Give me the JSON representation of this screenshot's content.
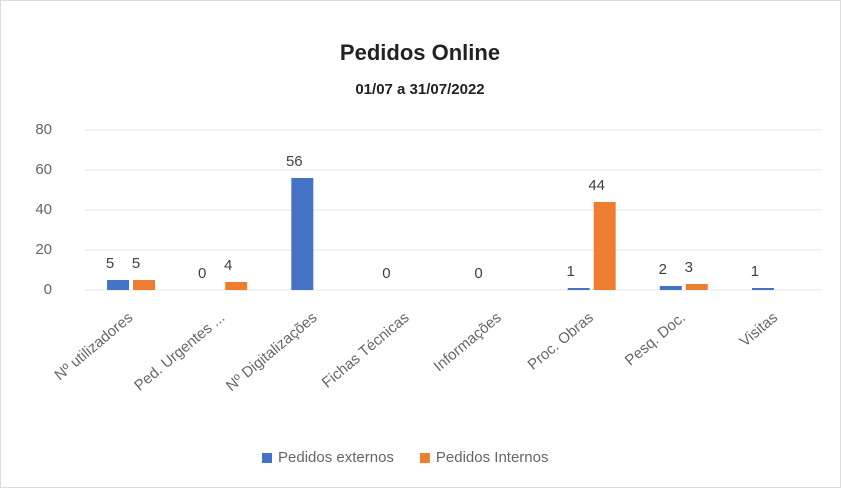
{
  "chart_data": {
    "type": "bar",
    "title": "Pedidos Online",
    "subtitle": "01/07 a 31/07/2022",
    "categories": [
      "Nº utilizadores",
      "Ped. Urgentes ...",
      "Nº Digitalizações",
      "Fichas Técnicas",
      "Informações",
      "Proc. Obras",
      "Pesq. Doc.",
      "Visitas"
    ],
    "series": [
      {
        "name": "Pedidos externos",
        "color": "#4472c4",
        "values": [
          5,
          0,
          56,
          0,
          0,
          1,
          2,
          1
        ]
      },
      {
        "name": "Pedidos Internos",
        "color": "#ed7d31",
        "values": [
          5,
          4,
          null,
          null,
          null,
          44,
          3,
          null
        ]
      }
    ],
    "ylim": [
      0,
      80
    ],
    "yticks": [
      0,
      20,
      40,
      60,
      80
    ],
    "grid": true,
    "legend": "bottom"
  }
}
